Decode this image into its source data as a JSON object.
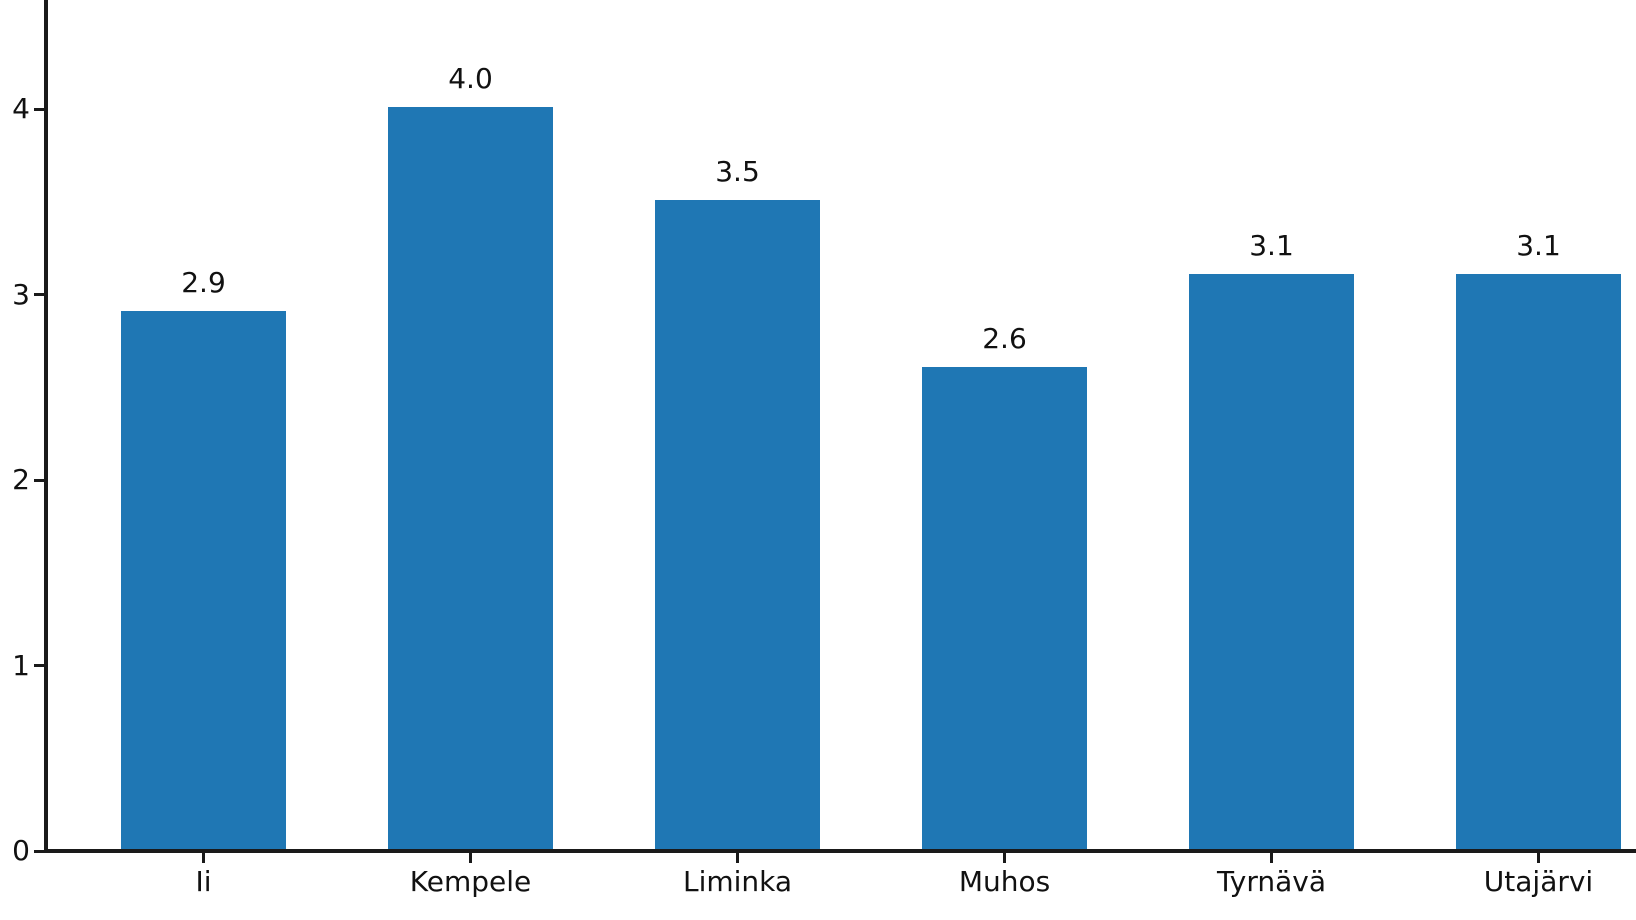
{
  "chart_data": {
    "type": "bar",
    "categories": [
      "Ii",
      "Kempele",
      "Liminka",
      "Muhos",
      "Tyrnävä",
      "Utajärvi"
    ],
    "values": [
      2.9,
      4.0,
      3.5,
      2.6,
      3.1,
      3.1
    ],
    "value_labels": [
      "2.9",
      "4.0",
      "3.5",
      "2.6",
      "3.1",
      "3.1"
    ],
    "title": "",
    "xlabel": "",
    "ylabel": "",
    "ylim": [
      0,
      4.58
    ],
    "yticks": [
      0,
      1,
      2,
      3,
      4
    ],
    "grid": false,
    "legend": null,
    "bar_color": "#1f77b4",
    "axis_color": "#1a1a1a",
    "text_color": "#111111"
  }
}
